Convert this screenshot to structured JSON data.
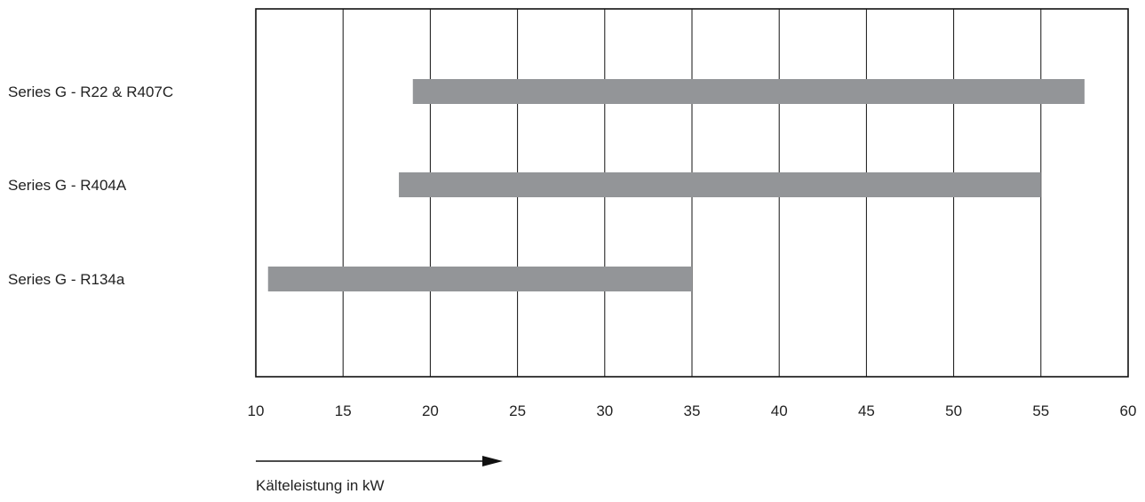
{
  "chart_data": {
    "type": "bar",
    "orientation": "horizontal-range",
    "categories": [
      "Series G - R22 & R407C",
      "Series G - R404A",
      "Series G - R134a"
    ],
    "ranges": [
      {
        "start": 19,
        "end": 57.5
      },
      {
        "start": 18.2,
        "end": 55
      },
      {
        "start": 10.7,
        "end": 35
      }
    ],
    "xlim": [
      10,
      60
    ],
    "xticks": [
      "10",
      "15",
      "20",
      "25",
      "30",
      "35",
      "40",
      "45",
      "50",
      "55",
      "60"
    ],
    "xlabel": "Kälteleistung in kW",
    "title": "",
    "grid": true,
    "bar_color": "#939598"
  }
}
